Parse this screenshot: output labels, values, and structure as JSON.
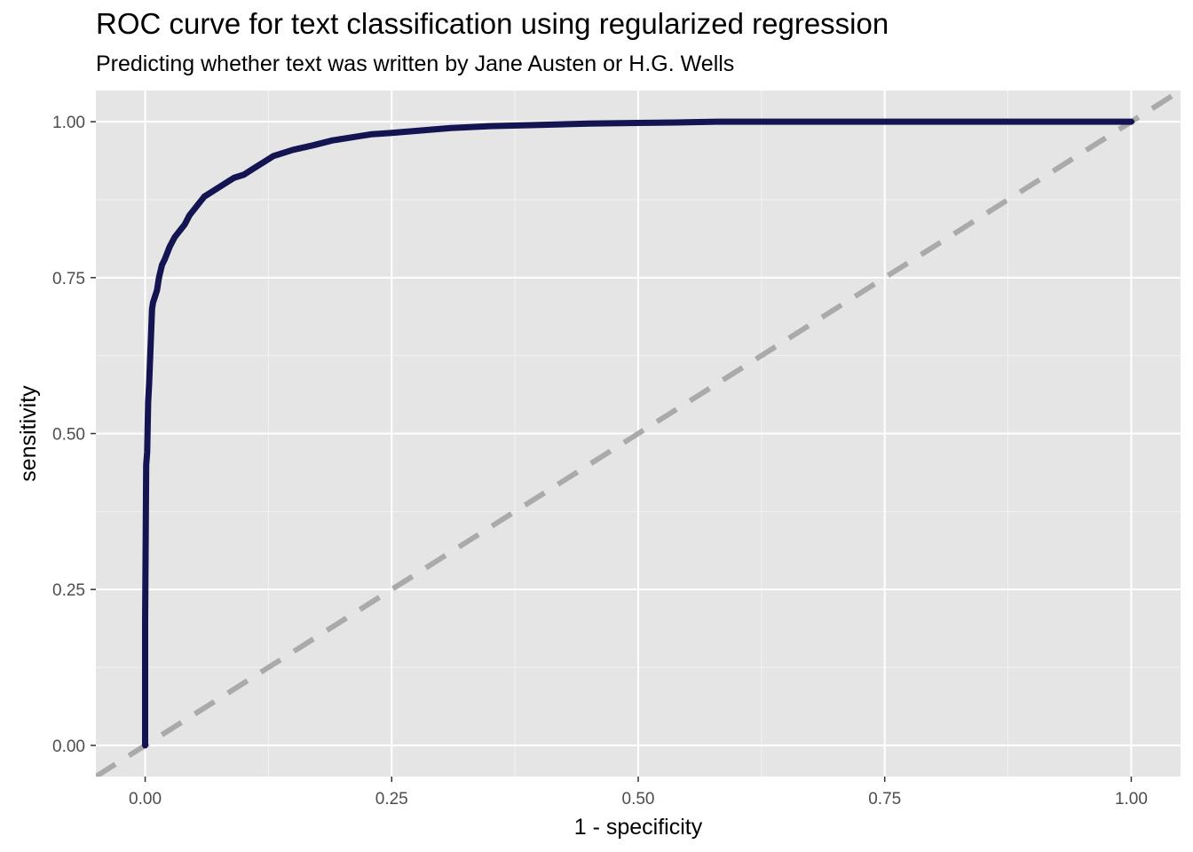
{
  "chart_data": {
    "type": "line",
    "title": "ROC curve for text classification using regularized regression",
    "subtitle": "Predicting whether text was written by Jane Austen or H.G. Wells",
    "xlabel": "1 - specificity",
    "ylabel": "sensitivity",
    "xlim": [
      -0.05,
      1.05
    ],
    "ylim": [
      -0.05,
      1.05
    ],
    "x_ticks": [
      0,
      0.25,
      0.5,
      0.75,
      1
    ],
    "x_tick_labels": [
      "0.00",
      "0.25",
      "0.50",
      "0.75",
      "1.00"
    ],
    "y_ticks": [
      0,
      0.25,
      0.5,
      0.75,
      1
    ],
    "y_tick_labels": [
      "0.00",
      "0.25",
      "0.50",
      "0.75",
      "1.00"
    ],
    "x_minor": [
      0.125,
      0.375,
      0.625,
      0.875
    ],
    "y_minor": [
      0.125,
      0.375,
      0.625,
      0.875
    ],
    "series": [
      {
        "name": "ROC curve",
        "color": "#141452",
        "x": [
          0,
          0,
          0.001,
          0.002,
          0.003,
          0.004,
          0.005,
          0.006,
          0.007,
          0.008,
          0.01,
          0.012,
          0.014,
          0.017,
          0.02,
          0.025,
          0.03,
          0.035,
          0.04,
          0.045,
          0.05,
          0.055,
          0.06,
          0.07,
          0.08,
          0.09,
          0.1,
          0.11,
          0.12,
          0.13,
          0.15,
          0.17,
          0.19,
          0.21,
          0.23,
          0.25,
          0.28,
          0.31,
          0.35,
          0.4,
          0.45,
          0.5,
          0.55,
          0.58,
          0.65,
          0.8,
          1.0
        ],
        "y": [
          0,
          0.2,
          0.45,
          0.47,
          0.55,
          0.58,
          0.62,
          0.66,
          0.7,
          0.71,
          0.72,
          0.73,
          0.75,
          0.77,
          0.78,
          0.8,
          0.815,
          0.825,
          0.835,
          0.85,
          0.86,
          0.87,
          0.88,
          0.89,
          0.9,
          0.91,
          0.915,
          0.925,
          0.935,
          0.945,
          0.955,
          0.962,
          0.97,
          0.975,
          0.98,
          0.982,
          0.986,
          0.99,
          0.993,
          0.995,
          0.997,
          0.998,
          0.999,
          1.0,
          1.0,
          1.0,
          1.0
        ]
      },
      {
        "name": "chance",
        "color": "#aaaaaa",
        "dash": "dashed",
        "x": [
          -0.05,
          1.05
        ],
        "y": [
          -0.05,
          1.05
        ]
      }
    ]
  }
}
